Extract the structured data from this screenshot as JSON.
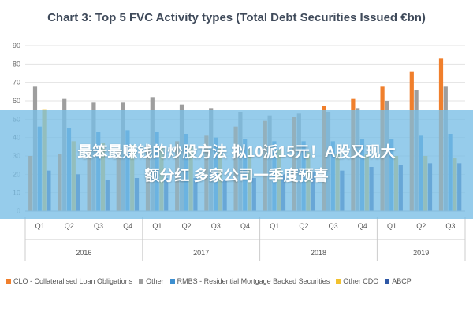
{
  "chart_data": {
    "type": "bar",
    "title": "Chart 3: Top 5 FVC Activity types (Total Debt Securities Issued €bn)",
    "categories": [
      "Q1",
      "Q2",
      "Q3",
      "Q4",
      "Q1",
      "Q2",
      "Q3",
      "Q4",
      "Q1",
      "Q2",
      "Q3",
      "Q4",
      "Q1",
      "Q2",
      "Q3"
    ],
    "year_groups": [
      {
        "label": "2016",
        "count": 4
      },
      {
        "label": "2017",
        "count": 4
      },
      {
        "label": "2018",
        "count": 4
      },
      {
        "label": "2019",
        "count": 3
      }
    ],
    "ylim": [
      0,
      90
    ],
    "yticks": [
      0,
      10,
      20,
      30,
      40,
      50,
      60,
      70,
      80,
      90
    ],
    "grid": true,
    "legend_position": "bottom",
    "series": [
      {
        "name": "CLO - Collateralised Loan Obligations",
        "color": "#f07f2c",
        "values": [
          30,
          31,
          33,
          34,
          36,
          38,
          41,
          46,
          49,
          51,
          57,
          61,
          68,
          76,
          83
        ]
      },
      {
        "name": "Other",
        "color": "#9e9e9e",
        "values": [
          68,
          61,
          59,
          59,
          62,
          58,
          56,
          54,
          52,
          53,
          54,
          56,
          60,
          66,
          68
        ]
      },
      {
        "name": "RMBS - Residential Mortgage Backed Securities",
        "color": "#3d8fd0",
        "values": [
          46,
          45,
          43,
          44,
          43,
          42,
          40,
          39,
          38,
          38,
          38,
          39,
          39,
          41,
          42
        ]
      },
      {
        "name": "Other CDO",
        "color": "#f2c12e",
        "values": [
          55,
          38,
          37,
          36,
          35,
          35,
          34,
          33,
          33,
          32,
          31,
          31,
          30,
          30,
          29
        ]
      },
      {
        "name": "ABCP",
        "color": "#2f58a6",
        "values": [
          22,
          20,
          17,
          18,
          18,
          18,
          17,
          18,
          20,
          21,
          22,
          24,
          25,
          26,
          26
        ]
      }
    ]
  },
  "banner": {
    "line1": "最笨最赚钱的炒股方法 拟10派15元！A股又现大",
    "line2": "额分红 多家公司一季度预喜"
  }
}
